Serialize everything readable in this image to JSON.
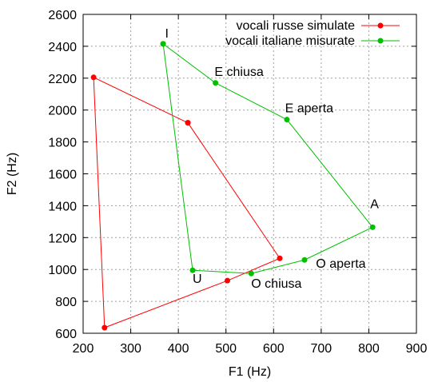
{
  "chart_data": {
    "type": "line",
    "title": "",
    "xlabel": "F1 (Hz)",
    "ylabel": "F2 (Hz)",
    "xlim": [
      200,
      900
    ],
    "ylim": [
      600,
      2600
    ],
    "xticks": [
      200,
      300,
      400,
      500,
      600,
      700,
      800,
      900
    ],
    "yticks": [
      600,
      800,
      1000,
      1200,
      1400,
      1600,
      1800,
      2000,
      2200,
      2400,
      2600
    ],
    "grid": true,
    "legend_position": "top-right",
    "series": [
      {
        "name": "vocali russe simulate",
        "color": "#ff0000",
        "points": [
          {
            "x": 420,
            "y": 1920
          },
          {
            "x": 222,
            "y": 2205
          },
          {
            "x": 245,
            "y": 635
          },
          {
            "x": 503,
            "y": 930
          },
          {
            "x": 613,
            "y": 1070
          },
          {
            "x": 420,
            "y": 1920
          }
        ]
      },
      {
        "name": "vocali italiane misurate",
        "color": "#00c000",
        "points": [
          {
            "x": 368,
            "y": 2415
          },
          {
            "x": 478,
            "y": 2170
          },
          {
            "x": 628,
            "y": 1940
          },
          {
            "x": 808,
            "y": 1265
          },
          {
            "x": 665,
            "y": 1060
          },
          {
            "x": 553,
            "y": 975
          },
          {
            "x": 430,
            "y": 995
          },
          {
            "x": 368,
            "y": 2415
          }
        ]
      }
    ],
    "annotations": [
      {
        "text": "I",
        "x": 372,
        "y": 2455
      },
      {
        "text": "E chiusa",
        "x": 476,
        "y": 2215
      },
      {
        "text": "E aperta",
        "x": 624,
        "y": 1985
      },
      {
        "text": "A",
        "x": 803,
        "y": 1385
      },
      {
        "text": "O aperta",
        "x": 689,
        "y": 1010
      },
      {
        "text": "O chiusa",
        "x": 553,
        "y": 885
      },
      {
        "text": "U",
        "x": 430,
        "y": 915
      }
    ]
  }
}
